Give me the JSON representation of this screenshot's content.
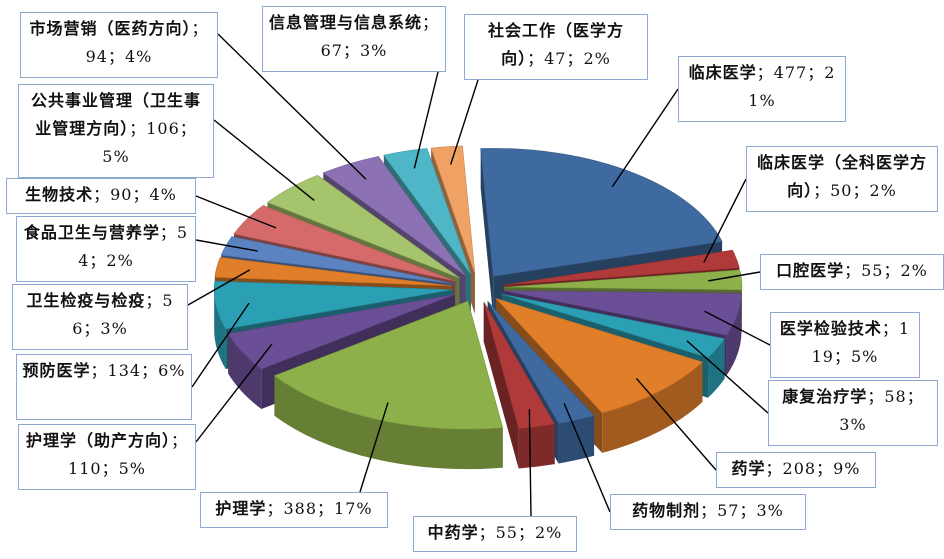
{
  "chart_data": {
    "type": "pie",
    "style": "3d-exploded",
    "legend": "none",
    "slices": [
      {
        "name": "临床医学",
        "value": 477,
        "percent": "21%",
        "color": "#3f6aa0"
      },
      {
        "name": "临床医学（全科医学方向）",
        "value": 50,
        "percent": "2%",
        "color": "#b03a3a"
      },
      {
        "name": "口腔医学",
        "value": 55,
        "percent": "2%",
        "color": "#8db04a"
      },
      {
        "name": "医学检验技术",
        "value": 119,
        "percent": "5%",
        "color": "#6b4f96"
      },
      {
        "name": "康复治疗学",
        "value": 58,
        "percent": "3%",
        "color": "#2b9fb3"
      },
      {
        "name": "药学",
        "value": 208,
        "percent": "9%",
        "color": "#e07e2a"
      },
      {
        "name": "药物制剂",
        "value": 57,
        "percent": "3%",
        "color": "#3f6aa0"
      },
      {
        "name": "中药学",
        "value": 55,
        "percent": "2%",
        "color": "#b03a3a"
      },
      {
        "name": "护理学",
        "value": 388,
        "percent": "17%",
        "color": "#8db04a"
      },
      {
        "name": "护理学（助产方向）",
        "value": 110,
        "percent": "5%",
        "color": "#6b4f96"
      },
      {
        "name": "预防医学",
        "value": 134,
        "percent": "6%",
        "color": "#2b9fb3"
      },
      {
        "name": "卫生检疫与检疫",
        "value": 56,
        "percent": "3%",
        "color": "#e07e2a"
      },
      {
        "name": "食品卫生与营养学",
        "value": 54,
        "percent": "2%",
        "color": "#5b83c2"
      },
      {
        "name": "生物技术",
        "value": 90,
        "percent": "4%",
        "color": "#d46a6a"
      },
      {
        "name": "公共事业管理（卫生事业管理方向）",
        "value": 106,
        "percent": "5%",
        "color": "#a6c46b"
      },
      {
        "name": "市场营销（医药方向）",
        "value": 94,
        "percent": "4%",
        "color": "#8c72b4"
      },
      {
        "name": "信息管理与信息系统",
        "value": 67,
        "percent": "3%",
        "color": "#4fb6c7"
      },
      {
        "name": "社会工作（医学方向）",
        "value": 47,
        "percent": "2%",
        "color": "#f0a265"
      }
    ]
  }
}
